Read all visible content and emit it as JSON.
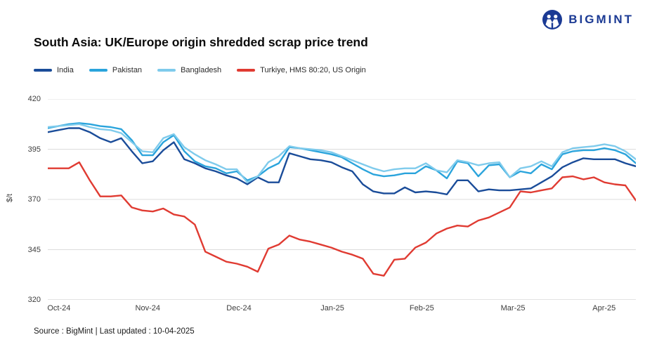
{
  "logo": {
    "text": "BIGMINT"
  },
  "title": "South Asia: UK/Europe origin shredded scrap price trend",
  "footer": {
    "text": "Source : BigMint | Last updated : 10-04-2025"
  },
  "colors": {
    "logo_blue": "#1b3a94",
    "grid": "#dcdcdc",
    "axis": "#c4c4c4"
  },
  "chart_data": {
    "type": "line",
    "title": "South Asia: UK/Europe origin shredded scrap price trend",
    "xlabel": "",
    "ylabel": "$/t",
    "ylim": [
      320,
      420
    ],
    "yticks": [
      420,
      395,
      370,
      345,
      320
    ],
    "grid": "horizontal",
    "legend_position": "top",
    "xticks": {
      "labels": [
        "Oct-24",
        "Nov-24",
        "Dec-24",
        "Jan-25",
        "Feb-25",
        "Mar-25",
        "Apr-25"
      ],
      "positions": [
        0.019,
        0.17,
        0.325,
        0.484,
        0.636,
        0.791,
        0.946
      ]
    },
    "series": [
      {
        "name": "India",
        "color": "#1a4c99",
        "values": [
          403.5,
          404.5,
          405.5,
          405.5,
          403.5,
          400.5,
          398.5,
          400.5,
          394,
          388,
          389,
          394.5,
          398.5,
          390,
          388,
          385.5,
          384,
          382,
          380.5,
          377.5,
          381,
          378.5,
          378.5,
          393,
          391.5,
          390,
          389.5,
          388.5,
          386,
          384,
          377.5,
          374,
          373,
          373,
          376,
          373.5,
          374,
          373.5,
          372.5,
          379.5,
          379.5,
          374,
          375,
          374.5,
          374.5,
          375,
          375.5,
          378.5,
          381.5,
          386,
          388.5,
          390.5,
          390,
          390,
          390,
          388,
          386.5
        ]
      },
      {
        "name": "Pakistan",
        "color": "#2aa4dc",
        "values": [
          405.5,
          406.5,
          407.5,
          408,
          407.5,
          406.5,
          406,
          405,
          399.5,
          392,
          392,
          398.5,
          402,
          394,
          389,
          386.5,
          385.5,
          383,
          384,
          379.5,
          381.5,
          385.5,
          388,
          396,
          395.5,
          394.5,
          393.5,
          392.5,
          391,
          388,
          385,
          382.5,
          381.5,
          382,
          383,
          383,
          386.5,
          384.5,
          380.5,
          389,
          388,
          381.5,
          387,
          387.5,
          381,
          384,
          383,
          387.5,
          385,
          392.5,
          394,
          394.5,
          394.5,
          395.5,
          394.5,
          392.5,
          388
        ]
      },
      {
        "name": "Bangladesh",
        "color": "#7fcbec",
        "values": [
          406,
          406.5,
          407,
          407.5,
          406,
          405,
          404.5,
          403,
          398.5,
          394,
          393.5,
          400.5,
          402.5,
          396,
          392.5,
          389.5,
          387.5,
          385,
          385,
          378.5,
          381.5,
          388.5,
          391.5,
          396.5,
          395.5,
          395,
          394.5,
          393.5,
          391.5,
          389.5,
          387.5,
          385.5,
          384,
          385,
          385.5,
          385.5,
          388,
          384.5,
          383.5,
          389.5,
          388.5,
          387,
          388,
          388.5,
          381,
          385.5,
          386.5,
          389,
          386.5,
          393.5,
          395.5,
          396,
          396.5,
          397.5,
          396.5,
          394,
          390
        ]
      },
      {
        "name": "Turkiye, HMS 80:20, US Origin",
        "color": "#e03b32",
        "values": [
          385.5,
          385.5,
          385.5,
          388.5,
          379.5,
          371.5,
          371.5,
          372,
          366,
          364.5,
          364,
          365.5,
          362.5,
          361.5,
          357.5,
          344,
          341.5,
          339,
          338,
          336.5,
          334,
          345.5,
          347.5,
          352,
          350,
          349,
          347.5,
          346,
          344,
          342.5,
          340.5,
          333,
          332,
          340,
          340.5,
          346,
          348.5,
          353,
          355.5,
          357,
          356.5,
          359.5,
          361,
          363.5,
          366,
          374,
          373.5,
          374.5,
          375.5,
          381,
          381.5,
          380,
          381,
          378.5,
          377.5,
          377,
          369.5
        ]
      }
    ]
  }
}
